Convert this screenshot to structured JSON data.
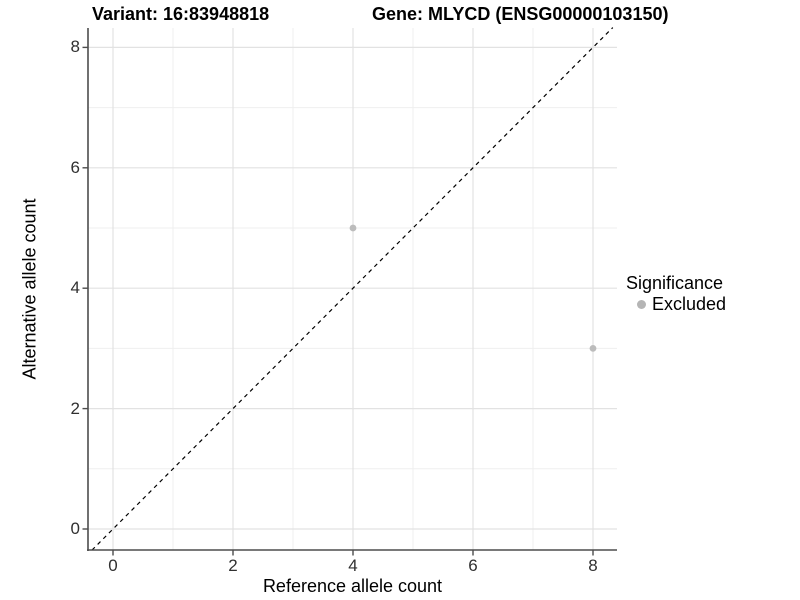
{
  "titles": {
    "variant": "Variant: 16:83948818",
    "gene": "Gene: MLYCD (ENSG00000103150)"
  },
  "legend": {
    "title": "Significance",
    "items": [
      {
        "label": "Excluded",
        "color": "#b5b5b5"
      }
    ]
  },
  "chart_data": {
    "type": "scatter",
    "title": "Variant: 16:83948818   Gene: MLYCD (ENSG00000103150)",
    "xlabel": "Reference allele count",
    "ylabel": "Alternative allele count",
    "series": [
      {
        "name": "Excluded",
        "color": "#bcbcbc",
        "points": [
          {
            "x": 4,
            "y": 5
          },
          {
            "x": 8,
            "y": 3
          }
        ]
      }
    ],
    "reference_line": {
      "type": "identity",
      "slope": 1,
      "intercept": 0,
      "style": "dashed",
      "color": "#000000"
    },
    "x_ticks": [
      0,
      2,
      4,
      6,
      8
    ],
    "y_ticks": [
      0,
      2,
      4,
      6,
      8
    ],
    "x_minor_ticks": [
      1,
      3,
      5,
      7
    ],
    "y_minor_ticks": [
      1,
      3,
      5,
      7
    ],
    "xlim": [
      -0.42,
      8.42
    ],
    "ylim": [
      -0.35,
      8.33
    ],
    "grid": true,
    "legend_position": "right"
  },
  "colors": {
    "background": "#ffffff",
    "grid_major": "#e2e2e2",
    "grid_minor": "#efefef",
    "axis_line": "#4d4d4d",
    "tick_mark": "#4d4d4d",
    "tick_label": "#303030",
    "point": "#bcbcbc"
  }
}
